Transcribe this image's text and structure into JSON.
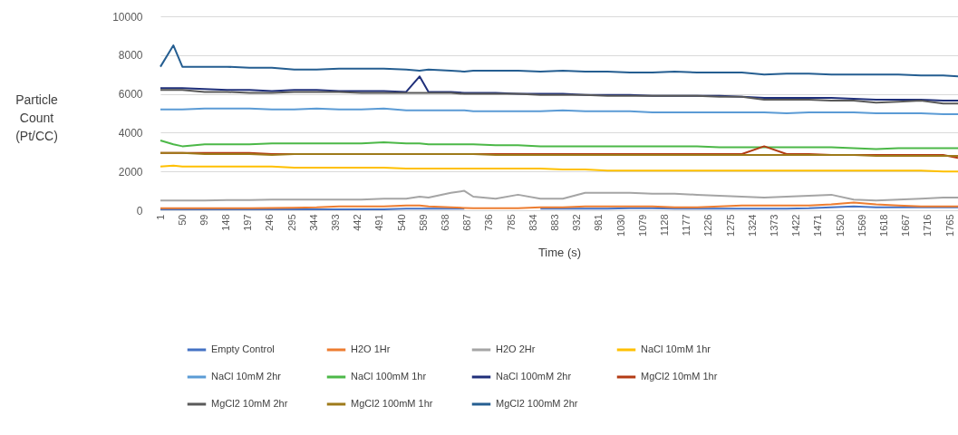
{
  "chart_data": {
    "type": "line",
    "xlabel": "Time (s)",
    "ylabel": "Particle Count (Pt/CC)",
    "x": [
      1,
      30,
      50,
      100,
      150,
      200,
      250,
      300,
      350,
      400,
      450,
      500,
      550,
      580,
      600,
      650,
      680,
      700,
      750,
      800,
      850,
      900,
      950,
      1000,
      1050,
      1100,
      1150,
      1200,
      1250,
      1300,
      1350,
      1400,
      1450,
      1500,
      1550,
      1600,
      1650,
      1700,
      1750,
      1783
    ],
    "xlim": [
      1,
      1783
    ],
    "xticks": [
      1,
      50,
      99,
      148,
      197,
      246,
      295,
      344,
      393,
      442,
      491,
      540,
      589,
      638,
      687,
      736,
      785,
      834,
      883,
      932,
      981,
      1030,
      1079,
      1128,
      1177,
      1226,
      1275,
      1324,
      1373,
      1422,
      1471,
      1520,
      1569,
      1618,
      1667,
      1716,
      1765
    ],
    "ylim": [
      0,
      10000
    ],
    "yticks": [
      0,
      2000,
      4000,
      6000,
      8000,
      10000
    ],
    "grid": "y",
    "legend": "bottom",
    "series": [
      {
        "name": "Empty  Control",
        "color": "#4472c4",
        "values": [
          50,
          50,
          50,
          50,
          50,
          50,
          50,
          50,
          50,
          50,
          50,
          50,
          80,
          80,
          80,
          80,
          80,
          null,
          null,
          null,
          80,
          80,
          80,
          80,
          100,
          100,
          80,
          80,
          80,
          80,
          80,
          80,
          100,
          150,
          200,
          150,
          150,
          150,
          150,
          150
        ]
      },
      {
        "name": "H2O 1Hr",
        "color": "#ed7d31",
        "values": [
          100,
          100,
          100,
          100,
          100,
          100,
          120,
          130,
          150,
          200,
          200,
          200,
          250,
          250,
          200,
          150,
          120,
          100,
          100,
          100,
          150,
          150,
          200,
          200,
          200,
          200,
          150,
          150,
          200,
          250,
          250,
          250,
          250,
          300,
          400,
          300,
          250,
          200,
          200,
          200
        ]
      },
      {
        "name": "H2O 2Hr",
        "color": "#a5a5a5",
        "values": [
          500,
          500,
          500,
          500,
          520,
          520,
          550,
          550,
          550,
          550,
          550,
          600,
          600,
          700,
          650,
          900,
          1000,
          700,
          600,
          800,
          600,
          600,
          900,
          900,
          900,
          850,
          850,
          800,
          750,
          700,
          650,
          700,
          750,
          800,
          550,
          500,
          550,
          600,
          650,
          650
        ]
      },
      {
        "name": "NaCl 10mM 1hr",
        "color": "#ffc000",
        "values": [
          2250,
          2300,
          2250,
          2250,
          2250,
          2250,
          2250,
          2200,
          2200,
          2200,
          2200,
          2200,
          2150,
          2150,
          2150,
          2150,
          2150,
          2150,
          2150,
          2150,
          2150,
          2100,
          2100,
          2050,
          2050,
          2050,
          2050,
          2050,
          2050,
          2050,
          2050,
          2050,
          2050,
          2050,
          2050,
          2050,
          2050,
          2050,
          2000,
          2000
        ]
      },
      {
        "name": "NaCl 10mM 2hr",
        "color": "#5b9bd5",
        "values": [
          5200,
          5200,
          5200,
          5250,
          5250,
          5250,
          5200,
          5200,
          5250,
          5200,
          5200,
          5250,
          5150,
          5150,
          5150,
          5150,
          5150,
          5100,
          5100,
          5100,
          5100,
          5150,
          5100,
          5100,
          5100,
          5050,
          5050,
          5050,
          5050,
          5050,
          5050,
          5000,
          5050,
          5050,
          5050,
          5000,
          5000,
          5000,
          4950,
          4950
        ]
      },
      {
        "name": "NaCl 100mM 1hr",
        "color": "#4cb848",
        "values": [
          3600,
          3400,
          3300,
          3400,
          3400,
          3400,
          3450,
          3450,
          3450,
          3450,
          3450,
          3500,
          3450,
          3450,
          3400,
          3400,
          3400,
          3400,
          3350,
          3350,
          3300,
          3300,
          3300,
          3300,
          3300,
          3300,
          3300,
          3300,
          3250,
          3250,
          3250,
          3250,
          3250,
          3250,
          3200,
          3150,
          3200,
          3200,
          3200,
          3200
        ]
      },
      {
        "name": "NaCl 100mM 2hr",
        "color": "#1f2f7a",
        "values": [
          6300,
          6300,
          6300,
          6250,
          6200,
          6200,
          6150,
          6200,
          6200,
          6150,
          6150,
          6150,
          6100,
          6900,
          6100,
          6100,
          6050,
          6050,
          6050,
          6000,
          6000,
          6000,
          5950,
          5950,
          5950,
          5900,
          5900,
          5900,
          5900,
          5850,
          5800,
          5800,
          5800,
          5800,
          5750,
          5700,
          5700,
          5700,
          5650,
          5650
        ]
      },
      {
        "name": "MgCl2 10mM 1hr",
        "color": "#b33b14",
        "values": [
          2950,
          2950,
          2950,
          2950,
          2950,
          2950,
          2900,
          2900,
          2900,
          2900,
          2900,
          2900,
          2900,
          2900,
          2900,
          2900,
          2900,
          2900,
          2900,
          2900,
          2900,
          2900,
          2900,
          2900,
          2900,
          2900,
          2900,
          2900,
          2900,
          2900,
          3300,
          2900,
          2900,
          2850,
          2850,
          2850,
          2850,
          2850,
          2850,
          2700
        ]
      },
      {
        "name": "MgCl2 10mM 2hr",
        "color": "#595959",
        "values": [
          6200,
          6200,
          6200,
          6100,
          6100,
          6050,
          6050,
          6100,
          6100,
          6100,
          6050,
          6050,
          6050,
          6050,
          6050,
          6050,
          6000,
          6000,
          6000,
          6000,
          5950,
          5950,
          5950,
          5900,
          5900,
          5900,
          5900,
          5900,
          5850,
          5850,
          5700,
          5700,
          5700,
          5650,
          5650,
          5550,
          5600,
          5650,
          5500,
          5500
        ]
      },
      {
        "name": "MgCl2 100mM 1hr",
        "color": "#9e7a1a",
        "values": [
          2950,
          2950,
          2950,
          2900,
          2900,
          2900,
          2850,
          2900,
          2900,
          2900,
          2900,
          2900,
          2900,
          2900,
          2900,
          2900,
          2900,
          2900,
          2850,
          2850,
          2850,
          2850,
          2850,
          2850,
          2850,
          2850,
          2850,
          2850,
          2850,
          2850,
          2850,
          2850,
          2850,
          2850,
          2850,
          2800,
          2800,
          2800,
          2800,
          2800
        ]
      },
      {
        "name": "MgCl2 100mM 2hr",
        "color": "#255e91",
        "values": [
          7400,
          8500,
          7400,
          7400,
          7400,
          7350,
          7350,
          7250,
          7250,
          7300,
          7300,
          7300,
          7250,
          7200,
          7250,
          7200,
          7150,
          7200,
          7200,
          7200,
          7150,
          7200,
          7150,
          7150,
          7100,
          7100,
          7150,
          7100,
          7100,
          7100,
          7000,
          7050,
          7050,
          7000,
          7000,
          7000,
          7000,
          6950,
          6950,
          6900
        ]
      }
    ]
  }
}
